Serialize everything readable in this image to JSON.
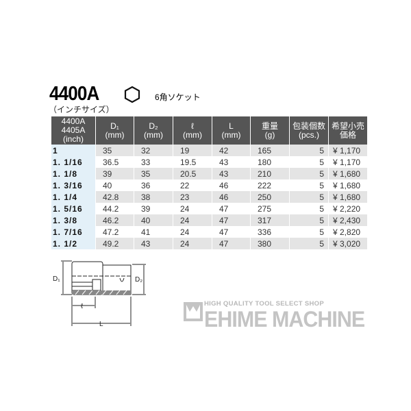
{
  "header": {
    "title": "4400A",
    "subtitle": "（インチサイズ）",
    "type_label": "6角ソケット",
    "type_icon": "hexagon-icon"
  },
  "table": {
    "headers": [
      [
        "4400A",
        "4405A",
        "(inch)"
      ],
      [
        "D₁",
        "(mm)"
      ],
      [
        "D₂",
        "(mm)"
      ],
      [
        "ℓ",
        "(mm)"
      ],
      [
        "L",
        "(mm)"
      ],
      [
        "重量",
        "(g)"
      ],
      [
        "包装個数",
        "(pcs.)"
      ],
      [
        "希望小売",
        "価格"
      ]
    ],
    "rows": [
      [
        "1",
        "35",
        "32",
        "19",
        "42",
        "165",
        "5",
        "¥ 1,170"
      ],
      [
        "1. 1/16",
        "36.5",
        "33",
        "19.5",
        "43",
        "180",
        "5",
        "¥ 1,170"
      ],
      [
        "1. 1/8",
        "39",
        "35",
        "20.5",
        "43",
        "210",
        "5",
        "¥ 1,680"
      ],
      [
        "1. 3/16",
        "40",
        "36",
        "22",
        "46",
        "222",
        "5",
        "¥ 1,680"
      ],
      [
        "1. 1/4",
        "42.8",
        "38",
        "23",
        "46",
        "250",
        "5",
        "¥ 1,680"
      ],
      [
        "1. 5/16",
        "44.2",
        "39",
        "24",
        "47",
        "275",
        "5",
        "¥ 2,220"
      ],
      [
        "1. 3/8",
        "46.2",
        "40",
        "24",
        "47",
        "317",
        "5",
        "¥ 2,430"
      ],
      [
        "1. 7/16",
        "47.2",
        "41",
        "24",
        "47",
        "336",
        "5",
        "¥ 2,820"
      ],
      [
        "1. 1/2",
        "49.2",
        "43",
        "24",
        "47",
        "380",
        "5",
        "¥ 3,020"
      ]
    ]
  },
  "diagram": {
    "d1": "D₁",
    "d2": "D₂",
    "l_small": "ℓ",
    "l_big": "L"
  },
  "logo": {
    "tagline": "HIGH QUALITY TOOL SELECT SHOP",
    "name": "EHIME MACHINE"
  }
}
